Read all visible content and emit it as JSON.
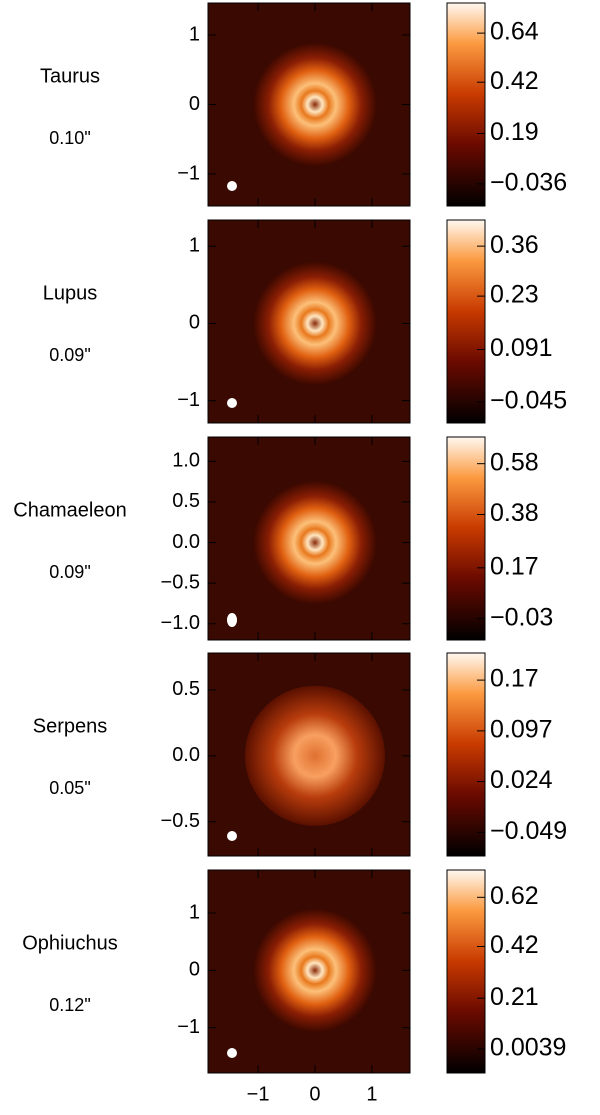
{
  "panels": [
    {
      "name": "Taurus",
      "resolution": "0.10\"",
      "ylim": [
        -1.46,
        1.46
      ],
      "yticks": [
        {
          "value": -1,
          "label": "−1"
        },
        0,
        1
      ],
      "colorbar": {
        "clim": [
          -0.135,
          0.775
        ],
        "ticks": [
          {
            "value": -0.036,
            "label": "−0.036"
          },
          0.19,
          0.42,
          0.64
        ]
      }
    },
    {
      "name": "Lupus",
      "resolution": "0.09\"",
      "ylim": [
        -1.29,
        1.34
      ],
      "yticks": [
        {
          "value": -1,
          "label": "−1"
        },
        0,
        1
      ],
      "colorbar": {
        "clim": [
          -0.1,
          0.428
        ],
        "ticks": [
          {
            "value": -0.045,
            "label": "−0.045"
          },
          0.091,
          0.23,
          0.36
        ]
      }
    },
    {
      "name": "Chamaeleon",
      "resolution": "0.09\"",
      "ylim": [
        -1.2,
        1.3
      ],
      "yticks": [
        {
          "value": -1,
          "label": "−1.0"
        },
        {
          "value": -0.5,
          "label": "−0.5"
        },
        {
          "value": 0,
          "label": "0.0"
        },
        0.5,
        {
          "value": 1,
          "label": "1.0"
        }
      ],
      "colorbar": {
        "clim": [
          -0.114,
          0.685
        ],
        "ticks": [
          {
            "value": -0.03,
            "label": "−0.03"
          },
          0.17,
          0.38,
          0.58
        ]
      }
    },
    {
      "name": "Serpens",
      "resolution": "0.05\"",
      "ylim": [
        -0.76,
        0.78
      ],
      "yticks": [
        {
          "value": -0.5,
          "label": "−0.5"
        },
        {
          "value": 0,
          "label": "0.0"
        },
        0.5
      ],
      "colorbar": {
        "clim": [
          -0.083,
          0.209
        ],
        "ticks": [
          {
            "value": -0.049,
            "label": "−0.049"
          },
          0.024,
          0.097,
          0.17
        ]
      }
    },
    {
      "name": "Ophiuchus",
      "resolution": "0.12\"",
      "ylim": [
        -1.79,
        1.75
      ],
      "yticks": [
        {
          "value": -1,
          "label": "−1"
        },
        0,
        1
      ],
      "colorbar": {
        "clim": [
          -0.094,
          0.731
        ],
        "ticks": [
          0.0039,
          0.21,
          0.42,
          0.62
        ]
      }
    }
  ],
  "xaxis": {
    "xlim": [
      -1.88,
      1.67
    ],
    "xticks": [
      {
        "value": -1,
        "label": "−1"
      },
      0,
      1
    ]
  }
}
